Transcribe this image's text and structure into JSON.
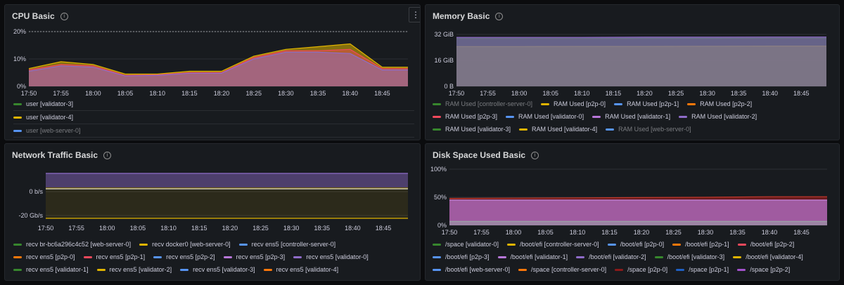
{
  "colors": {
    "green": "#37872d",
    "yellow": "#e0b400",
    "blue": "#5794f2",
    "orange": "#ff780a",
    "red": "#f2495c",
    "purple": "#b877d9",
    "violet": "#8f6cc9",
    "darkred": "#8b1a1a",
    "darkblue": "#1f60c4",
    "darkpurple": "#a352cc"
  },
  "panels": {
    "cpu": {
      "title": "CPU Basic",
      "chart_data": {
        "type": "area",
        "title": "CPU Basic",
        "y_ticks": [
          "20%",
          "10%",
          "0%"
        ],
        "ylim": [
          0,
          20
        ],
        "x_ticks": [
          "17:50",
          "17:55",
          "18:00",
          "18:05",
          "18:10",
          "18:15",
          "18:20",
          "18:25",
          "18:30",
          "18:35",
          "18:40",
          "18:45"
        ],
        "x": [
          17.8333,
          17.9167,
          18.0,
          18.0833,
          18.1667,
          18.25,
          18.3333,
          18.4167,
          18.5,
          18.5833,
          18.6667,
          18.75,
          18.8167
        ],
        "series": [
          {
            "name": "user [validator-4]",
            "values": [
              6.5,
              9,
              8,
              4.5,
              4.5,
              5.5,
              5.5,
              11,
              13.5,
              14.5,
              15.5,
              7,
              7
            ]
          },
          {
            "name": "user [validator-3]",
            "values": [
              6,
              8,
              7.5,
              4,
              4.2,
              5,
              5,
              10.5,
              13,
              13,
              13.5,
              6.5,
              6.5
            ]
          },
          {
            "name": "user [web-server-0]",
            "values": [
              5.5,
              7.5,
              7,
              3.8,
              4,
              4.8,
              4.8,
              10,
              12.5,
              12.5,
              12,
              6,
              6
            ]
          }
        ]
      },
      "legend_rows": [
        [
          {
            "label": "user [validator-3]",
            "color": "#37872d",
            "dim": false
          }
        ],
        [
          {
            "label": "user [validator-4]",
            "color": "#e0b400",
            "dim": false
          }
        ],
        [
          {
            "label": "user [web-server-0]",
            "color": "#5794f2",
            "dim": true
          }
        ]
      ]
    },
    "memory": {
      "title": "Memory Basic",
      "chart_data": {
        "type": "area",
        "title": "Memory Basic",
        "y_ticks": [
          "32 GiB",
          "16 GiB",
          "0 B"
        ],
        "ylim": [
          0,
          32
        ],
        "x_ticks": [
          "17:50",
          "17:55",
          "18:00",
          "18:05",
          "18:10",
          "18:15",
          "18:20",
          "18:25",
          "18:30",
          "18:35",
          "18:40",
          "18:45"
        ],
        "x": [
          17.8333,
          18.0,
          18.1667,
          18.3333,
          18.5,
          18.6667,
          18.8167
        ],
        "series": [
          {
            "name": "RAM Used [validator-4]",
            "values": [
              24.5,
              24.5,
              24.6,
              24.6,
              24.7,
              24.8,
              24.8
            ]
          },
          {
            "name": "RAM Used [validator-3]",
            "values": [
              29.5,
              29.5,
              29.5,
              29.6,
              29.6,
              29.7,
              29.7
            ]
          },
          {
            "name": "RAM Used [validator-2]",
            "values": [
              30.2,
              30.2,
              30.2,
              30.3,
              30.3,
              30.4,
              30.4
            ]
          }
        ]
      },
      "legend_rows": [
        [
          {
            "label": "RAM Used [controller-server-0]",
            "color": "#37872d",
            "dim": true
          },
          {
            "label": "RAM Used [p2p-0]",
            "color": "#e0b400",
            "dim": false
          },
          {
            "label": "RAM Used [p2p-1]",
            "color": "#5794f2",
            "dim": false
          },
          {
            "label": "RAM Used [p2p-2]",
            "color": "#ff780a",
            "dim": false
          }
        ],
        [
          {
            "label": "RAM Used [p2p-3]",
            "color": "#f2495c",
            "dim": false
          },
          {
            "label": "RAM Used [validator-0]",
            "color": "#5794f2",
            "dim": false
          },
          {
            "label": "RAM Used [validator-1]",
            "color": "#b877d9",
            "dim": false
          },
          {
            "label": "RAM Used [validator-2]",
            "color": "#8f6cc9",
            "dim": false
          }
        ],
        [
          {
            "label": "RAM Used [validator-3]",
            "color": "#37872d",
            "dim": false
          },
          {
            "label": "RAM Used [validator-4]",
            "color": "#e0b400",
            "dim": false
          },
          {
            "label": "RAM Used [web-server-0]",
            "color": "#5794f2",
            "dim": true
          }
        ]
      ]
    },
    "network": {
      "title": "Network Traffic Basic",
      "chart_data": {
        "type": "area",
        "title": "Network Traffic Basic",
        "y_ticks": [
          "0 b/s",
          "-20 Gb/s"
        ],
        "ylim": [
          -24,
          10
        ],
        "x_ticks": [
          "17:50",
          "17:55",
          "18:00",
          "18:05",
          "18:10",
          "18:15",
          "18:20",
          "18:25",
          "18:30",
          "18:35",
          "18:40",
          "18:45"
        ],
        "x": [
          17.8333,
          18.8167
        ],
        "series": [
          {
            "name": "recv ens5 [validator-0]",
            "values": [
              10,
              10
            ]
          },
          {
            "name": "recv docker0 [web-server-0]",
            "values": [
              -1,
              -1
            ]
          },
          {
            "name": "recv ens5 [validator-2]",
            "values": [
              -22,
              -22
            ]
          }
        ]
      },
      "legend_rows": [
        [
          {
            "label": "recv br-bc6a296c4c52 [web-server-0]",
            "color": "#37872d",
            "dim": false
          },
          {
            "label": "recv docker0 [web-server-0]",
            "color": "#e0b400",
            "dim": false
          },
          {
            "label": "recv ens5 [controller-server-0]",
            "color": "#5794f2",
            "dim": false
          }
        ],
        [
          {
            "label": "recv ens5 [p2p-0]",
            "color": "#ff780a",
            "dim": false
          },
          {
            "label": "recv ens5 [p2p-1]",
            "color": "#f2495c",
            "dim": false
          },
          {
            "label": "recv ens5 [p2p-2]",
            "color": "#5794f2",
            "dim": false
          },
          {
            "label": "recv ens5 [p2p-3]",
            "color": "#b877d9",
            "dim": false
          },
          {
            "label": "recv ens5 [validator-0]",
            "color": "#8f6cc9",
            "dim": false
          }
        ],
        [
          {
            "label": "recv ens5 [validator-1]",
            "color": "#37872d",
            "dim": false
          },
          {
            "label": "recv ens5 [validator-2]",
            "color": "#e0b400",
            "dim": false
          },
          {
            "label": "recv ens5 [validator-3]",
            "color": "#5794f2",
            "dim": false
          },
          {
            "label": "recv ens5 [validator-4]",
            "color": "#ff780a",
            "dim": false
          }
        ]
      ]
    },
    "disk": {
      "title": "Disk Space Used Basic",
      "chart_data": {
        "type": "area",
        "title": "Disk Space Used Basic",
        "y_ticks": [
          "100%",
          "50%",
          "0%"
        ],
        "ylim": [
          0,
          100
        ],
        "x_ticks": [
          "17:50",
          "17:55",
          "18:00",
          "18:05",
          "18:10",
          "18:15",
          "18:20",
          "18:25",
          "18:30",
          "18:35",
          "18:40",
          "18:45"
        ],
        "x": [
          17.8333,
          18.0,
          18.1667,
          18.3333,
          18.5,
          18.6667,
          18.8167
        ],
        "series": [
          {
            "name": "/space [p2p-0]",
            "values": [
              48,
              48.5,
              49,
              49.5,
              50,
              51,
              51
            ]
          },
          {
            "name": "/space [p2p-2]",
            "values": [
              45,
              45,
              45,
              45,
              45,
              45,
              45
            ]
          },
          {
            "name": "/boot/efi [p2p-3]",
            "values": [
              7,
              7,
              7,
              7,
              7,
              7,
              7
            ]
          }
        ]
      },
      "legend_rows": [
        [
          {
            "label": "/space [validator-0]",
            "color": "#37872d",
            "dim": false
          },
          {
            "label": "/boot/efi [controller-server-0]",
            "color": "#e0b400",
            "dim": false
          },
          {
            "label": "/boot/efi [p2p-0]",
            "color": "#5794f2",
            "dim": false
          },
          {
            "label": "/boot/efi [p2p-1]",
            "color": "#ff780a",
            "dim": false
          },
          {
            "label": "/boot/efi [p2p-2]",
            "color": "#f2495c",
            "dim": false
          }
        ],
        [
          {
            "label": "/boot/efi [p2p-3]",
            "color": "#5794f2",
            "dim": false
          },
          {
            "label": "/boot/efi [validator-1]",
            "color": "#b877d9",
            "dim": false
          },
          {
            "label": "/boot/efi [validator-2]",
            "color": "#8f6cc9",
            "dim": false
          },
          {
            "label": "/boot/efi [validator-3]",
            "color": "#37872d",
            "dim": false
          },
          {
            "label": "/boot/efi [validator-4]",
            "color": "#e0b400",
            "dim": false
          }
        ],
        [
          {
            "label": "/boot/efi [web-server-0]",
            "color": "#5794f2",
            "dim": false
          },
          {
            "label": "/space [controller-server-0]",
            "color": "#ff780a",
            "dim": false
          },
          {
            "label": "/space [p2p-0]",
            "color": "#8b1a1a",
            "dim": false
          },
          {
            "label": "/space [p2p-1]",
            "color": "#1f60c4",
            "dim": false
          },
          {
            "label": "/space [p2p-2]",
            "color": "#a352cc",
            "dim": false
          }
        ]
      ]
    }
  }
}
